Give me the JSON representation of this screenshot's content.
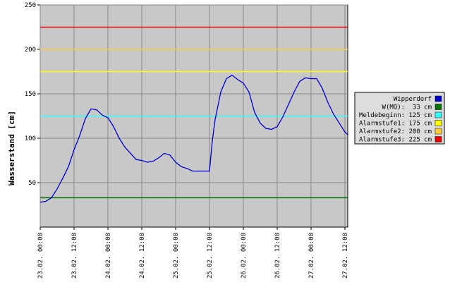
{
  "chart_data": {
    "type": "line",
    "y_label": "Wasserstand [cm]",
    "x": [
      0,
      2,
      4,
      6,
      8,
      10,
      12,
      14,
      16,
      18,
      20,
      22,
      24,
      26,
      28,
      30,
      32,
      34,
      36,
      38,
      40,
      42,
      44,
      46,
      48,
      50,
      52,
      54,
      56,
      58,
      60,
      61,
      62,
      64,
      66,
      68,
      70,
      72,
      74,
      76,
      78,
      80,
      82,
      84,
      86,
      88,
      90,
      92,
      94,
      96,
      98,
      100,
      102,
      104,
      106,
      108,
      109
    ],
    "series": [
      {
        "name": "Wipperdorf",
        "color": "#0000cc",
        "values": [
          28,
          29,
          33,
          43,
          55,
          68,
          87,
          103,
          122,
          133,
          132,
          126,
          123,
          113,
          100,
          90,
          83,
          76,
          75,
          73,
          74,
          78,
          83,
          81,
          73,
          68,
          66,
          63,
          63,
          63,
          63,
          97,
          121,
          152,
          167,
          171,
          166,
          162,
          152,
          129,
          117,
          111,
          110,
          113,
          124,
          138,
          152,
          164,
          168,
          167,
          167,
          156,
          140,
          127,
          117,
          107,
          104
        ]
      }
    ],
    "thresholds": [
      {
        "name": "W(MQ):  33 cm",
        "value": 33,
        "color": "#007700"
      },
      {
        "name": "Meldebeginn: 125 cm",
        "value": 125,
        "color": "#33ffff"
      },
      {
        "name": "Alarmstufe1: 175 cm",
        "value": 175,
        "color": "#ffff00"
      },
      {
        "name": "Alarmstufe2: 200 cm",
        "value": 200,
        "color": "#ffcc33"
      },
      {
        "name": "Alarmstufe3: 225 cm",
        "value": 225,
        "color": "#ee0000"
      }
    ],
    "xlim": [
      0,
      109
    ],
    "xticks": [
      {
        "value": 0,
        "label": "23.02. 00:00"
      },
      {
        "value": 12,
        "label": "23.02. 12:00"
      },
      {
        "value": 24,
        "label": "24.02. 00:00"
      },
      {
        "value": 36,
        "label": "24.02. 12:00"
      },
      {
        "value": 48,
        "label": "25.02. 00:00"
      },
      {
        "value": 60,
        "label": "25.02. 12:00"
      },
      {
        "value": 72,
        "label": "26.02. 00:00"
      },
      {
        "value": 84,
        "label": "26.02. 12:00"
      },
      {
        "value": 96,
        "label": "27.02. 00:00"
      },
      {
        "value": 108,
        "label": "27.02. 12:00"
      }
    ],
    "ylim": [
      0,
      250
    ],
    "yticks": [
      50,
      100,
      150,
      200,
      250
    ],
    "grid": true
  }
}
